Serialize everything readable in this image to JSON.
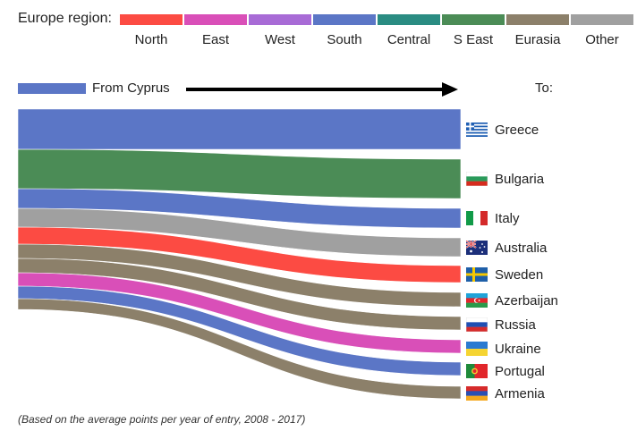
{
  "legend": {
    "title": "Europe region:",
    "items": [
      {
        "label": "North",
        "color": "#fc4b43"
      },
      {
        "label": "East",
        "color": "#d94fb8"
      },
      {
        "label": "West",
        "color": "#a86bd6"
      },
      {
        "label": "South",
        "color": "#5b76c6"
      },
      {
        "label": "Central",
        "color": "#2a8c82"
      },
      {
        "label": "S East",
        "color": "#4b8c56"
      },
      {
        "label": "Eurasia",
        "color": "#8c806a"
      },
      {
        "label": "Other",
        "color": "#a0a0a0"
      }
    ]
  },
  "source": {
    "label": "From Cyprus",
    "color": "#5b76c6"
  },
  "target_header": "To:",
  "destinations": [
    {
      "name": "Greece",
      "region": "South",
      "flag": "greece-flag-icon"
    },
    {
      "name": "Bulgaria",
      "region": "S East",
      "flag": "bulgaria-flag-icon"
    },
    {
      "name": "Italy",
      "region": "South",
      "flag": "italy-flag-icon"
    },
    {
      "name": "Australia",
      "region": "Other",
      "flag": "australia-flag-icon"
    },
    {
      "name": "Sweden",
      "region": "North",
      "flag": "sweden-flag-icon"
    },
    {
      "name": "Azerbaijan",
      "region": "Eurasia",
      "flag": "azerbaijan-flag-icon"
    },
    {
      "name": "Russia",
      "region": "Eurasia",
      "flag": "russia-flag-icon"
    },
    {
      "name": "Ukraine",
      "region": "East",
      "flag": "ukraine-flag-icon"
    },
    {
      "name": "Portugal",
      "region": "South",
      "flag": "portugal-flag-icon"
    },
    {
      "name": "Armenia",
      "region": "Eurasia",
      "flag": "armenia-flag-icon"
    }
  ],
  "footnote": "(Based on the average points per year of entry, 2008 - 2017)"
}
